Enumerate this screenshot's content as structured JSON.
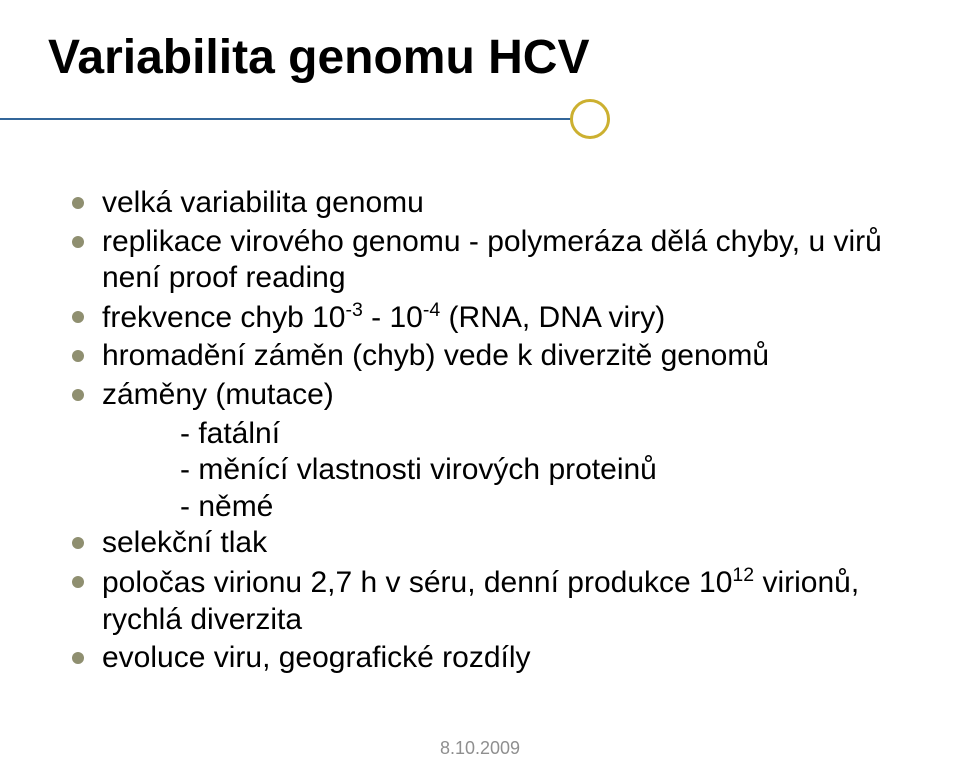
{
  "title": "Variabilita genomu HCV",
  "accent_color": "#336699",
  "circle_border_color": "#ccb030",
  "circle_border_width": 3,
  "bullet_color": "#8f8f70",
  "footer_color": "#8f8f8f",
  "text_color": "#000000",
  "title_fontsize": 48,
  "body_fontsize": 30,
  "footer_fontsize": 18,
  "bullets": [
    {
      "kind": "bullet",
      "text": "velká variabilita genomu"
    },
    {
      "kind": "bullet",
      "text": "replikace virového genomu - polymeráza dělá chyby, u virů není proof reading"
    },
    {
      "kind": "bullet",
      "html": "frekvence chyb  10<sup>-3</sup> - 10<sup>-4</sup> (RNA, DNA viry)"
    },
    {
      "kind": "bullet",
      "text": "hromadění záměn (chyb) vede k diverzitě genomů"
    },
    {
      "kind": "bullet",
      "text": "záměny (mutace)"
    },
    {
      "kind": "sub",
      "text": "- fatální"
    },
    {
      "kind": "sub",
      "text": "- měnící vlastnosti virových proteinů"
    },
    {
      "kind": "sub",
      "text": "- němé"
    },
    {
      "kind": "bullet",
      "text": "selekční tlak"
    },
    {
      "kind": "bullet",
      "html": "poločas virionu 2,7 h v séru, denní produkce 10<sup>12</sup> virionů, rychlá diverzita"
    },
    {
      "kind": "bullet",
      "text": "evoluce viru, geografické rozdíly"
    }
  ],
  "footer_date": "8.10.2009"
}
